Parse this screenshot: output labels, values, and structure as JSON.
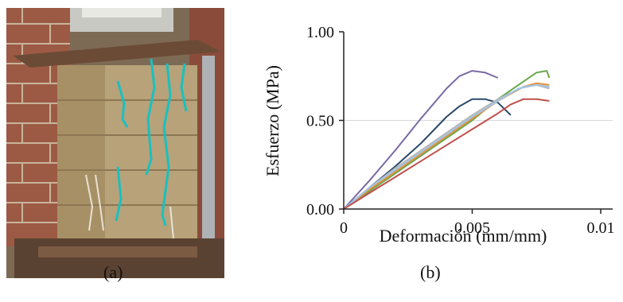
{
  "figure": {
    "caption_a": "(a)",
    "caption_b": "(b)"
  },
  "chart_data": {
    "type": "line",
    "title": "",
    "xlabel": "Deformación (mm/mm)",
    "ylabel": "Esfuerzo (MPa)",
    "xlim": [
      0,
      0.01
    ],
    "ylim": [
      0,
      1.0
    ],
    "xticks": [
      "0",
      "0.005",
      "0.01"
    ],
    "yticks": [
      "0.00",
      "0.50",
      "1.00"
    ],
    "grid": "horizontal at 0.50",
    "legend": "none",
    "series": [
      {
        "color": "#7a6aa6",
        "x": [
          0,
          0.001,
          0.002,
          0.003,
          0.004,
          0.0045,
          0.005,
          0.0055,
          0.006
        ],
        "y": [
          0,
          0.16,
          0.33,
          0.51,
          0.68,
          0.75,
          0.78,
          0.77,
          0.74
        ]
      },
      {
        "color": "#2b4a6b",
        "x": [
          0,
          0.001,
          0.002,
          0.003,
          0.004,
          0.0045,
          0.005,
          0.0055,
          0.006,
          0.0065
        ],
        "y": [
          0,
          0.12,
          0.24,
          0.37,
          0.52,
          0.58,
          0.62,
          0.62,
          0.6,
          0.53
        ]
      },
      {
        "color": "#6aa84f",
        "x": [
          0,
          0.001,
          0.002,
          0.003,
          0.004,
          0.005,
          0.006,
          0.007,
          0.0075,
          0.0079,
          0.008
        ],
        "y": [
          0,
          0.1,
          0.2,
          0.3,
          0.4,
          0.5,
          0.62,
          0.72,
          0.77,
          0.78,
          0.74
        ]
      },
      {
        "color": "#e69138",
        "x": [
          0,
          0.001,
          0.002,
          0.003,
          0.004,
          0.005,
          0.006,
          0.007,
          0.0075,
          0.008
        ],
        "y": [
          0,
          0.11,
          0.21,
          0.31,
          0.41,
          0.51,
          0.61,
          0.69,
          0.71,
          0.7
        ]
      },
      {
        "color": "#b7b7b7",
        "x": [
          0,
          0.001,
          0.002,
          0.003,
          0.004,
          0.005,
          0.006,
          0.007,
          0.0075,
          0.008
        ],
        "y": [
          0,
          0.12,
          0.23,
          0.33,
          0.43,
          0.53,
          0.62,
          0.69,
          0.7,
          0.68
        ]
      },
      {
        "color": "#9fc5e8",
        "x": [
          0,
          0.001,
          0.002,
          0.003,
          0.004,
          0.005,
          0.006,
          0.0068,
          0.0075,
          0.008
        ],
        "y": [
          0,
          0.12,
          0.22,
          0.32,
          0.42,
          0.52,
          0.61,
          0.68,
          0.7,
          0.69
        ]
      },
      {
        "color": "#c0504d",
        "x": [
          0,
          0.001,
          0.002,
          0.003,
          0.004,
          0.005,
          0.006,
          0.0065,
          0.007,
          0.0075,
          0.008
        ],
        "y": [
          0,
          0.09,
          0.18,
          0.27,
          0.36,
          0.45,
          0.54,
          0.59,
          0.62,
          0.62,
          0.61
        ]
      }
    ]
  }
}
